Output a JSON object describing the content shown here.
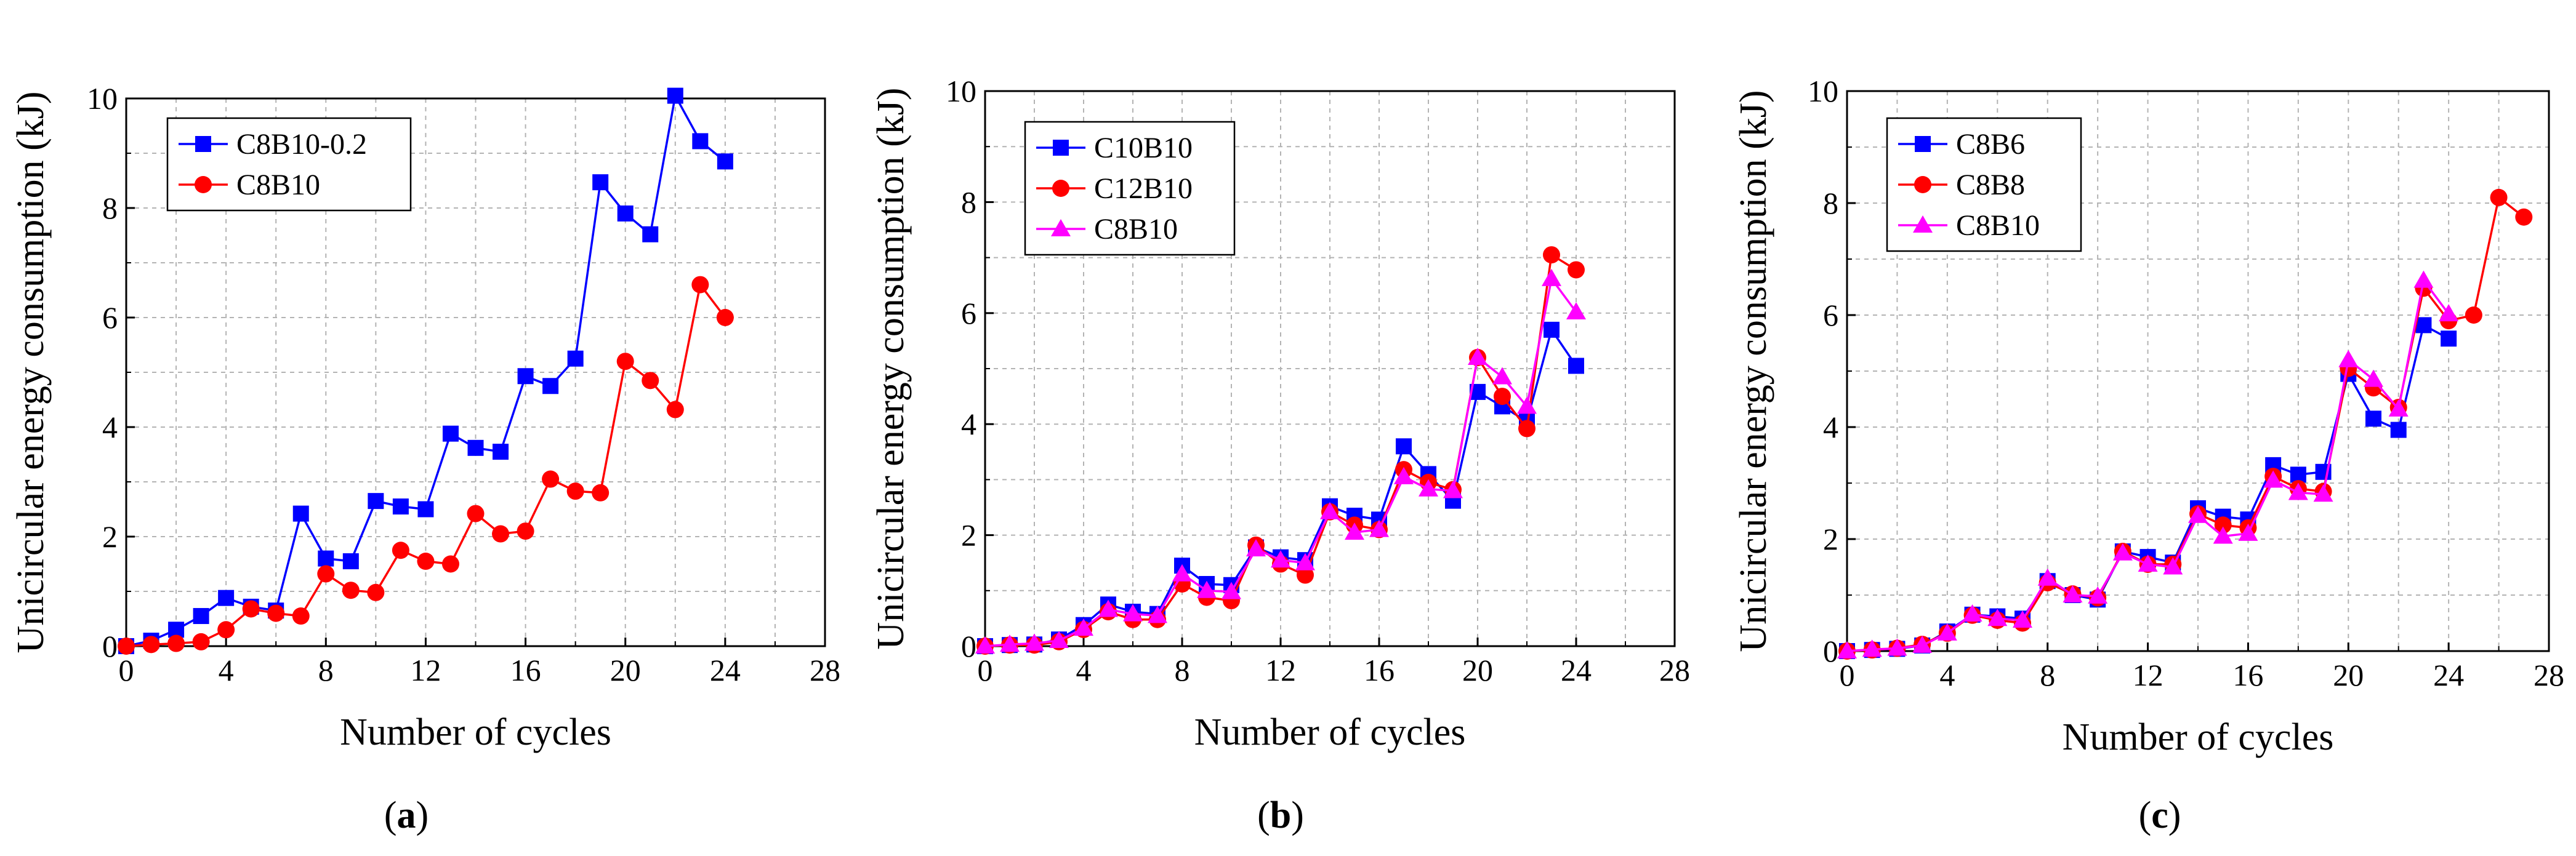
{
  "chart_data": [
    {
      "type": "line",
      "caption": "a",
      "xlabel": "Number of cycles",
      "ylabel": "Unicircular energy consumption (kJ)",
      "xlim": [
        0,
        28
      ],
      "ylim": [
        0,
        10
      ],
      "xticks": [
        0,
        4,
        8,
        12,
        16,
        20,
        24,
        28
      ],
      "yticks": [
        0,
        2,
        4,
        6,
        8,
        10
      ],
      "xtick_labels": [
        "0",
        "4",
        "8",
        "12",
        "16",
        "20",
        "24",
        "28"
      ],
      "ytick_labels": [
        "0",
        "2",
        "4",
        "6",
        "8",
        "10"
      ],
      "grid": true,
      "legend_position": "top-left",
      "series": [
        {
          "name": "C8B10-0.2",
          "color": "#0000ff",
          "marker": "square",
          "x": [
            0,
            1,
            2,
            3,
            4,
            5,
            6,
            7,
            8,
            9,
            10,
            11,
            12,
            13,
            14,
            15,
            16,
            17,
            18,
            19,
            20,
            21,
            22,
            23,
            24
          ],
          "y": [
            0,
            0.1,
            0.3,
            0.55,
            0.88,
            0.72,
            0.65,
            2.42,
            1.6,
            1.55,
            2.65,
            2.55,
            2.5,
            3.88,
            3.62,
            3.55,
            4.93,
            4.75,
            5.25,
            8.47,
            7.9,
            7.52,
            10.05,
            9.22,
            8.85
          ]
        },
        {
          "name": "C8B10",
          "color": "#ff0000",
          "marker": "circle",
          "x": [
            0,
            1,
            2,
            3,
            4,
            5,
            6,
            7,
            8,
            9,
            10,
            11,
            12,
            13,
            14,
            15,
            16,
            17,
            18,
            19,
            20,
            21,
            22,
            23,
            24
          ],
          "y": [
            0,
            0.03,
            0.05,
            0.08,
            0.3,
            0.68,
            0.6,
            0.55,
            1.32,
            1.02,
            0.98,
            1.75,
            1.55,
            1.5,
            2.42,
            2.05,
            2.1,
            3.05,
            2.83,
            2.8,
            5.2,
            4.85,
            4.32,
            6.6,
            6.0
          ]
        }
      ]
    },
    {
      "type": "line",
      "caption": "b",
      "xlabel": "Number of cycles",
      "ylabel": "Unicircular energy consumption (kJ)",
      "xlim": [
        0,
        28
      ],
      "ylim": [
        0,
        10
      ],
      "xticks": [
        0,
        4,
        8,
        12,
        16,
        20,
        24,
        28
      ],
      "yticks": [
        0,
        2,
        4,
        6,
        8,
        10
      ],
      "xtick_labels": [
        "0",
        "4",
        "8",
        "12",
        "16",
        "20",
        "24",
        "28"
      ],
      "ytick_labels": [
        "0",
        "2",
        "4",
        "6",
        "8",
        "10"
      ],
      "grid": true,
      "legend_position": "top-left",
      "series": [
        {
          "name": "C10B10",
          "color": "#0000ff",
          "marker": "square",
          "x": [
            0,
            1,
            2,
            3,
            4,
            5,
            6,
            7,
            8,
            9,
            10,
            11,
            12,
            13,
            14,
            15,
            16,
            17,
            18,
            19,
            20,
            21,
            22,
            23,
            24
          ],
          "y": [
            0,
            0.02,
            0.03,
            0.12,
            0.38,
            0.75,
            0.62,
            0.58,
            1.45,
            1.12,
            1.1,
            1.78,
            1.6,
            1.55,
            2.52,
            2.35,
            2.28,
            3.6,
            3.1,
            2.62,
            4.58,
            4.32,
            4.05,
            5.7,
            5.05
          ]
        },
        {
          "name": "C12B10",
          "color": "#ff0000",
          "marker": "circle",
          "x": [
            0,
            1,
            2,
            3,
            4,
            5,
            6,
            7,
            8,
            9,
            10,
            11,
            12,
            13,
            14,
            15,
            16,
            17,
            18,
            19,
            20,
            21,
            22,
            23,
            24
          ],
          "y": [
            0,
            0.02,
            0.02,
            0.08,
            0.3,
            0.62,
            0.48,
            0.48,
            1.12,
            0.88,
            0.82,
            1.82,
            1.48,
            1.28,
            2.42,
            2.18,
            2.1,
            3.18,
            2.95,
            2.82,
            5.2,
            4.5,
            3.92,
            7.05,
            6.78
          ]
        },
        {
          "name": "C8B10",
          "color": "#ff00ff",
          "marker": "triangle",
          "x": [
            0,
            1,
            2,
            3,
            4,
            5,
            6,
            7,
            8,
            9,
            10,
            11,
            12,
            13,
            14,
            15,
            16,
            17,
            18,
            19,
            20,
            21,
            22,
            23,
            24
          ],
          "y": [
            0,
            0.03,
            0.05,
            0.1,
            0.32,
            0.66,
            0.58,
            0.55,
            1.3,
            1.0,
            0.98,
            1.75,
            1.55,
            1.5,
            2.42,
            2.05,
            2.1,
            3.05,
            2.83,
            2.8,
            5.2,
            4.85,
            4.32,
            6.62,
            6.02
          ]
        }
      ]
    },
    {
      "type": "line",
      "caption": "c",
      "xlabel": "Number of cycles",
      "ylabel": "Unicircular energy consumption (kJ)",
      "xlim": [
        0,
        28
      ],
      "ylim": [
        0,
        10
      ],
      "xticks": [
        0,
        4,
        8,
        12,
        16,
        20,
        24,
        28
      ],
      "yticks": [
        0,
        2,
        4,
        6,
        8,
        10
      ],
      "xtick_labels": [
        "0",
        "4",
        "8",
        "12",
        "16",
        "20",
        "24",
        "28"
      ],
      "ytick_labels": [
        "0",
        "2",
        "4",
        "6",
        "8",
        "10"
      ],
      "grid": true,
      "legend_position": "top-left",
      "series": [
        {
          "name": "C8B6",
          "color": "#0000ff",
          "marker": "square",
          "x": [
            0,
            1,
            2,
            3,
            4,
            5,
            6,
            7,
            8,
            9,
            10,
            11,
            12,
            13,
            14,
            15,
            16,
            17,
            18,
            19,
            20,
            21,
            22,
            23,
            24
          ],
          "y": [
            0,
            0.02,
            0.04,
            0.1,
            0.35,
            0.65,
            0.62,
            0.58,
            1.25,
            1.0,
            0.92,
            1.78,
            1.68,
            1.58,
            2.55,
            2.4,
            2.35,
            3.32,
            3.15,
            3.2,
            4.95,
            4.15,
            3.95,
            5.82,
            5.58
          ]
        },
        {
          "name": "C8B8",
          "color": "#ff0000",
          "marker": "circle",
          "x": [
            0,
            1,
            2,
            3,
            4,
            5,
            6,
            7,
            8,
            9,
            10,
            11,
            12,
            13,
            14,
            15,
            16,
            17,
            18,
            19,
            20,
            21,
            22,
            23,
            24,
            25,
            26,
            27
          ],
          "y": [
            0,
            0.02,
            0.05,
            0.12,
            0.32,
            0.64,
            0.55,
            0.5,
            1.22,
            1.02,
            0.95,
            1.78,
            1.55,
            1.55,
            2.45,
            2.25,
            2.2,
            3.12,
            2.9,
            2.85,
            5.05,
            4.7,
            4.35,
            6.48,
            5.9,
            6.0,
            8.1,
            7.75
          ]
        },
        {
          "name": "C8B10",
          "color": "#ff00ff",
          "marker": "triangle",
          "x": [
            0,
            1,
            2,
            3,
            4,
            5,
            6,
            7,
            8,
            9,
            10,
            11,
            12,
            13,
            14,
            15,
            16,
            17,
            18,
            19,
            20,
            21,
            22,
            23,
            24
          ],
          "y": [
            0,
            0.03,
            0.05,
            0.1,
            0.32,
            0.66,
            0.58,
            0.55,
            1.3,
            1.0,
            0.98,
            1.75,
            1.55,
            1.5,
            2.42,
            2.05,
            2.1,
            3.05,
            2.83,
            2.8,
            5.2,
            4.85,
            4.32,
            6.62,
            6.02
          ]
        }
      ]
    }
  ]
}
